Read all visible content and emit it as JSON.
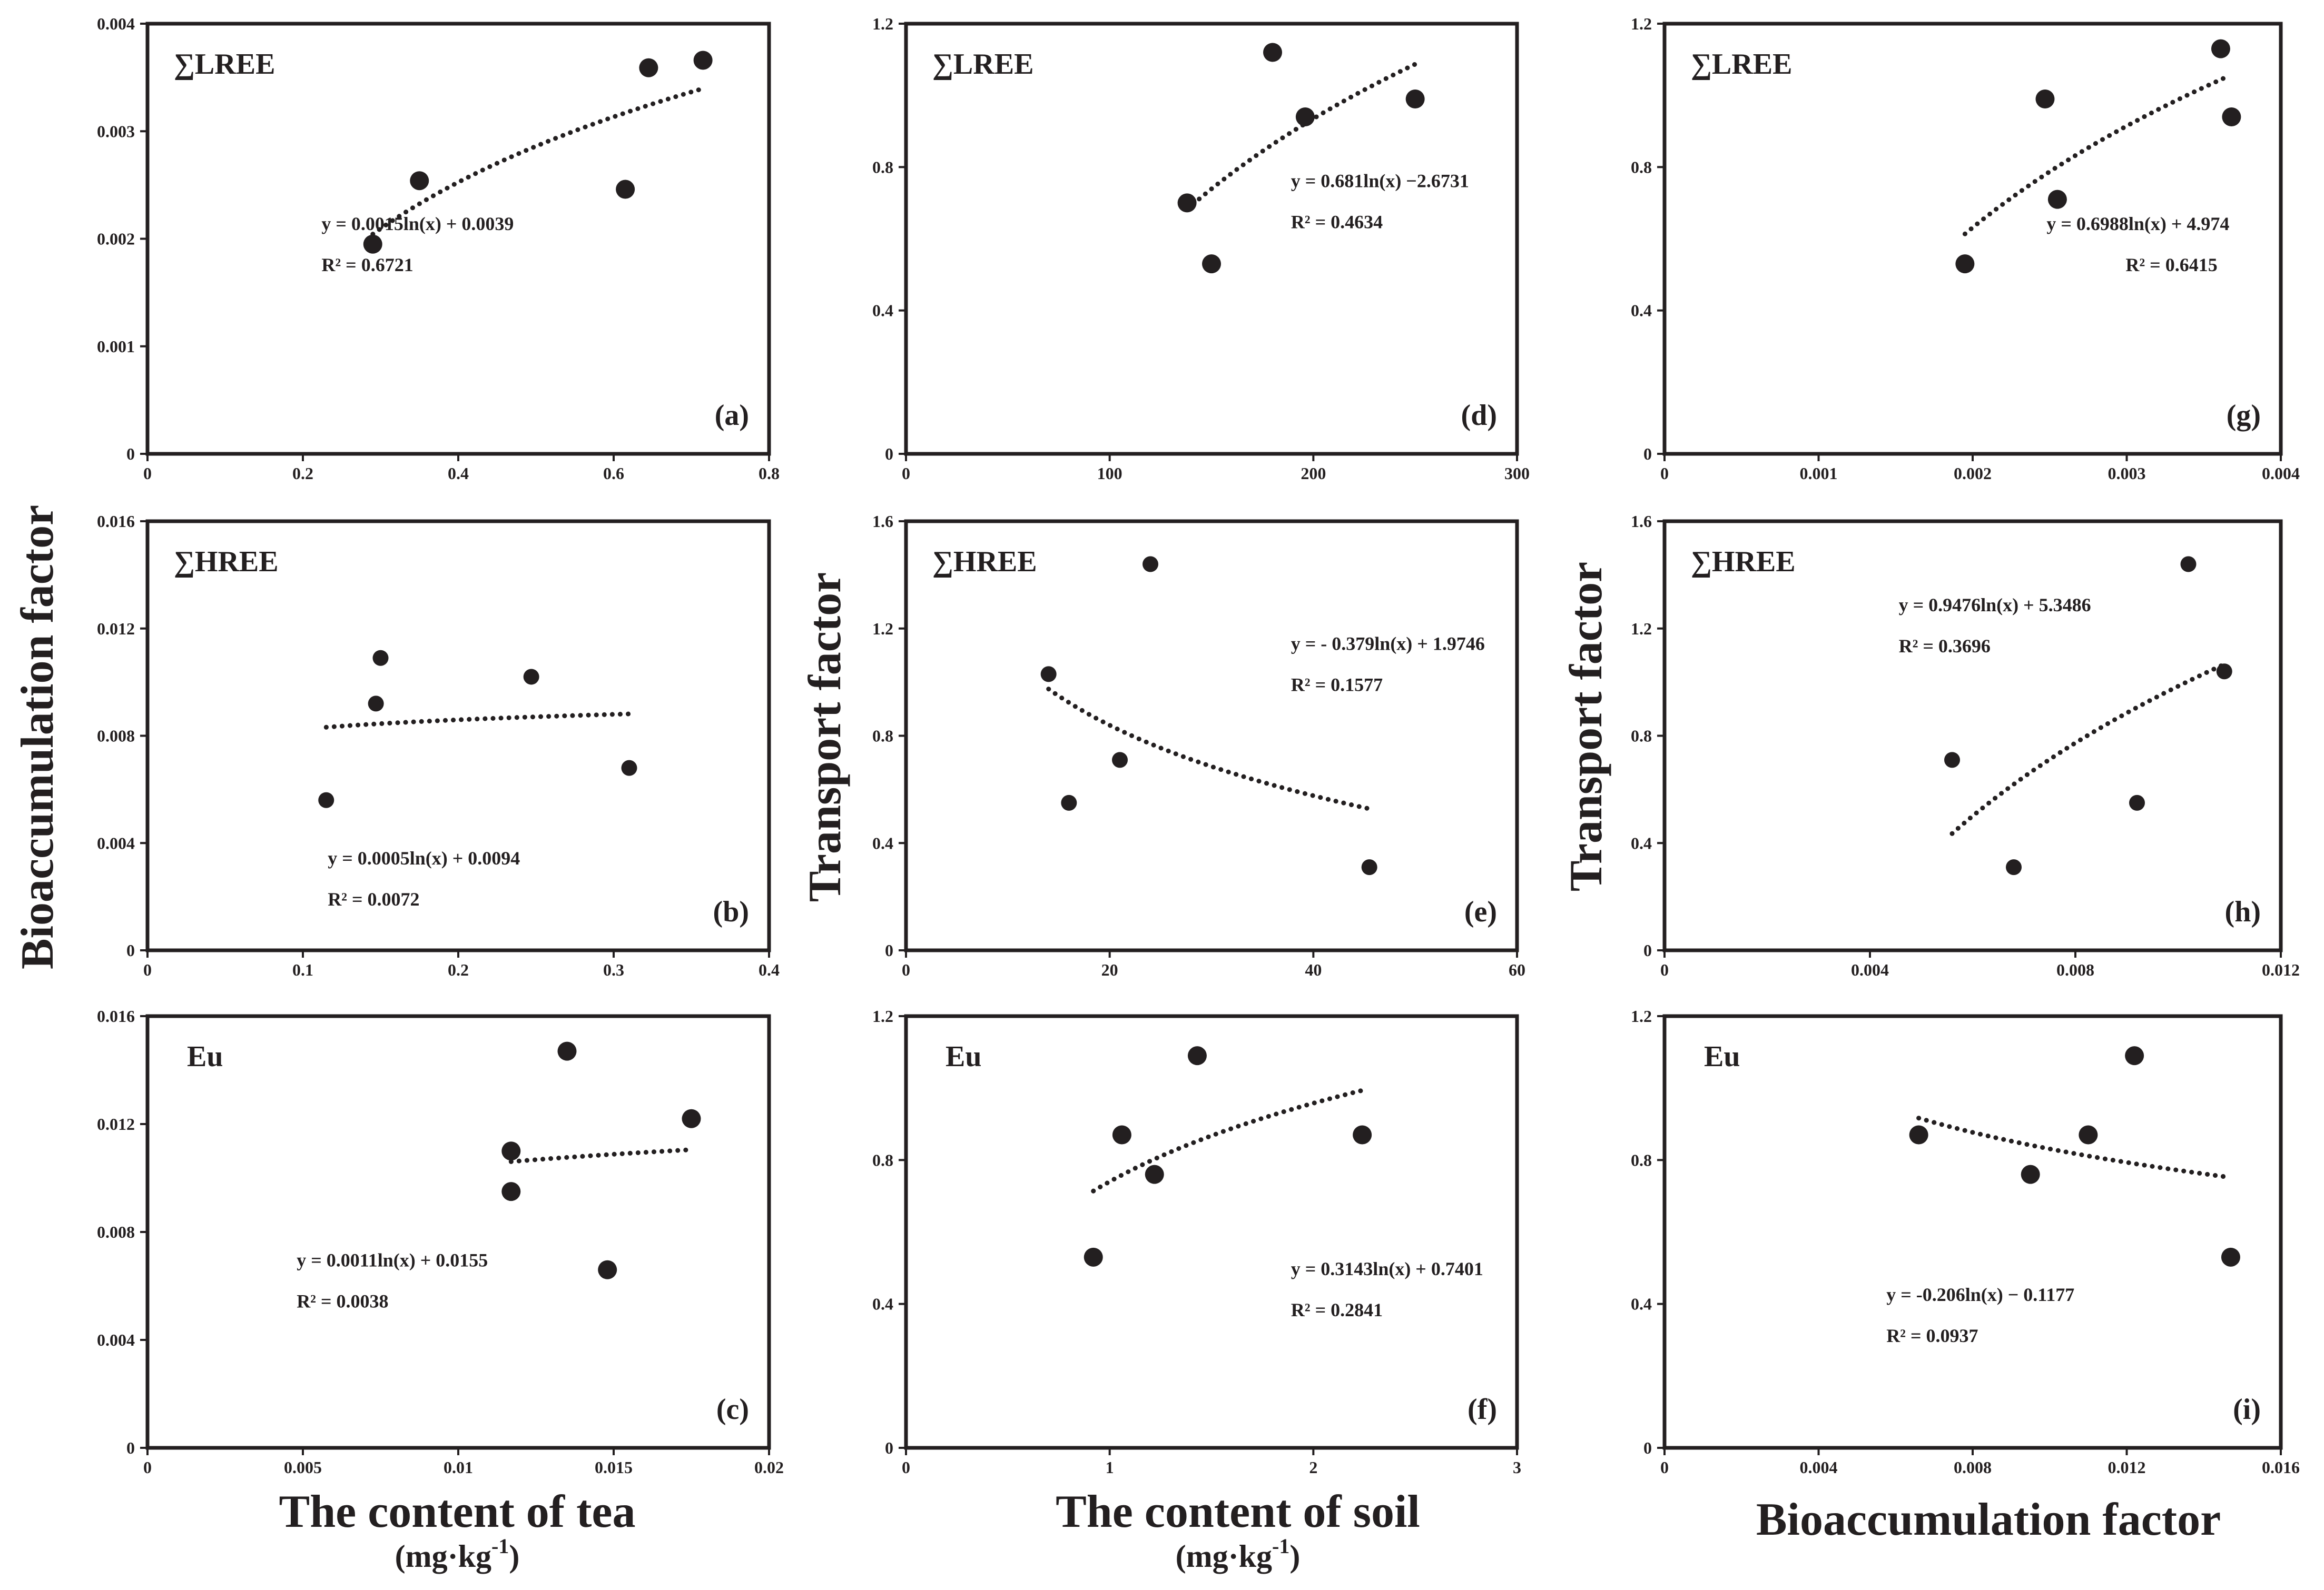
{
  "figure": {
    "col_xlabels": [
      {
        "main": "The content of tea",
        "unit": "(mg·kg",
        "sup": "-1",
        "close": ")"
      },
      {
        "main": "The content of soil",
        "unit": "(mg·kg",
        "sup": "-1",
        "close": ")"
      },
      {
        "main": "Bioaccumulation  factor",
        "unit": "",
        "sup": "",
        "close": ""
      }
    ],
    "row_ylabels": [
      {
        "text": "Bioaccumulation  factor",
        "rows": [
          0,
          2
        ],
        "col": 0
      },
      {
        "text": "Transport  factor",
        "rows": [
          0,
          2
        ],
        "col": 1
      },
      {
        "text": "Transport  factor",
        "rows": [
          1,
          2
        ],
        "col": 2
      }
    ]
  },
  "chart_data": [
    {
      "id": "a",
      "type": "scatter",
      "row": 0,
      "col": 0,
      "label": "∑LREE",
      "panel": "(a)",
      "xlim": [
        0,
        0.8
      ],
      "xticks": [
        0,
        0.2,
        0.4,
        0.6,
        0.8
      ],
      "xtick_labels": [
        "0",
        "0.2",
        "0.4",
        "0.6",
        "0.8"
      ],
      "ylim": [
        0,
        0.004
      ],
      "yticks": [
        0,
        0.001,
        0.002,
        0.003,
        0.004
      ],
      "ytick_labels": [
        "0",
        "0.001",
        "0.002",
        "0.003",
        "0.004"
      ],
      "points": [
        [
          0.29,
          0.00195
        ],
        [
          0.35,
          0.00254
        ],
        [
          0.615,
          0.00246
        ],
        [
          0.645,
          0.00359
        ],
        [
          0.715,
          0.00366
        ]
      ],
      "fit": {
        "a": 0.0015,
        "b": 0.0039,
        "x0": 0.29,
        "x1": 0.715
      },
      "equation": "y = 0.0015ln(x) + 0.0039",
      "r2": "R² = 0.6721"
    },
    {
      "id": "b",
      "type": "scatter",
      "row": 1,
      "col": 0,
      "label": "∑HREE",
      "panel": "(b)",
      "xlim": [
        0,
        0.4
      ],
      "xticks": [
        0,
        0.1,
        0.2,
        0.3,
        0.4
      ],
      "xtick_labels": [
        "0",
        "0.1",
        "0.2",
        "0.3",
        "0.4"
      ],
      "ylim": [
        0,
        0.016
      ],
      "yticks": [
        0,
        0.004,
        0.008,
        0.012,
        0.016
      ],
      "ytick_labels": [
        "0",
        "0.004",
        "0.008",
        "0.012",
        "0.016"
      ],
      "points": [
        [
          0.115,
          0.0056
        ],
        [
          0.147,
          0.0092
        ],
        [
          0.15,
          0.0109
        ],
        [
          0.247,
          0.0102
        ],
        [
          0.31,
          0.0068
        ]
      ],
      "fit": {
        "a": 0.0005,
        "b": 0.0094,
        "x0": 0.115,
        "x1": 0.31
      },
      "equation": "y = 0.0005ln(x) + 0.0094",
      "r2": "R² = 0.0072"
    },
    {
      "id": "c",
      "type": "scatter",
      "row": 2,
      "col": 0,
      "label": "Eu",
      "panel": "(c)",
      "xlim": [
        0,
        0.02
      ],
      "xticks": [
        0,
        0.005,
        0.01,
        0.015,
        0.02
      ],
      "xtick_labels": [
        "0",
        "0.005",
        "0.01",
        "0.015",
        "0.02"
      ],
      "ylim": [
        0,
        0.016
      ],
      "yticks": [
        0,
        0.004,
        0.008,
        0.012,
        0.016
      ],
      "ytick_labels": [
        "0",
        "0.004",
        "0.008",
        "0.012",
        "0.016"
      ],
      "points": [
        [
          0.0117,
          0.011
        ],
        [
          0.0117,
          0.0095
        ],
        [
          0.0135,
          0.0147
        ],
        [
          0.0148,
          0.0066
        ],
        [
          0.0175,
          0.0122
        ]
      ],
      "fit": {
        "a": 0.0011,
        "b": 0.0155,
        "x0": 0.0117,
        "x1": 0.0175
      },
      "equation": "y = 0.0011ln(x) + 0.0155",
      "r2": "R² = 0.0038"
    },
    {
      "id": "d",
      "type": "scatter",
      "row": 0,
      "col": 1,
      "label": "∑LREE",
      "panel": "(d)",
      "xlim": [
        0,
        300
      ],
      "xticks": [
        0,
        100,
        200,
        300
      ],
      "xtick_labels": [
        "0",
        "100",
        "200",
        "300"
      ],
      "ylim": [
        0,
        1.2
      ],
      "yticks": [
        0,
        0.4,
        0.8,
        1.2
      ],
      "ytick_labels": [
        "0",
        "0.4",
        "0.8",
        "1.2"
      ],
      "points": [
        [
          138,
          0.7
        ],
        [
          150,
          0.53
        ],
        [
          180,
          1.12
        ],
        [
          196,
          0.94
        ],
        [
          250,
          0.99
        ]
      ],
      "fit": {
        "a": 0.681,
        "b": -2.6731,
        "x0": 138,
        "x1": 250
      },
      "equation": "y = 0.681ln(x) −2.6731",
      "r2": "R² = 0.4634"
    },
    {
      "id": "e",
      "type": "scatter",
      "row": 1,
      "col": 1,
      "label": "∑HREE",
      "panel": "(e)",
      "xlim": [
        0,
        60
      ],
      "xticks": [
        0,
        20,
        40,
        60
      ],
      "xtick_labels": [
        "0",
        "20",
        "40",
        "60"
      ],
      "ylim": [
        0,
        1.6
      ],
      "yticks": [
        0,
        0.4,
        0.8,
        1.2,
        1.6
      ],
      "ytick_labels": [
        "0",
        "0.4",
        "0.8",
        "1.2",
        "1.6"
      ],
      "points": [
        [
          14,
          1.03
        ],
        [
          16,
          0.55
        ],
        [
          21,
          0.71
        ],
        [
          24,
          1.44
        ],
        [
          45.5,
          0.31
        ]
      ],
      "fit": {
        "a": -0.379,
        "b": 1.9746,
        "x0": 14,
        "x1": 45.5
      },
      "equation": "y = - 0.379ln(x) + 1.9746",
      "r2": "R² = 0.1577"
    },
    {
      "id": "f",
      "type": "scatter",
      "row": 2,
      "col": 1,
      "label": "Eu",
      "panel": "(f)",
      "xlim": [
        0,
        3
      ],
      "xticks": [
        0,
        1,
        2,
        3
      ],
      "xtick_labels": [
        "0",
        "1",
        "2",
        "3"
      ],
      "ylim": [
        0,
        1.2
      ],
      "yticks": [
        0,
        0.4,
        0.8,
        1.2
      ],
      "ytick_labels": [
        "0",
        "0.4",
        "0.8",
        "1.2"
      ],
      "points": [
        [
          0.92,
          0.53
        ],
        [
          1.06,
          0.87
        ],
        [
          1.22,
          0.76
        ],
        [
          1.43,
          1.09
        ],
        [
          2.24,
          0.87
        ]
      ],
      "fit": {
        "a": 0.3143,
        "b": 0.7401,
        "x0": 0.92,
        "x1": 2.24
      },
      "equation": "y = 0.3143ln(x) + 0.7401",
      "r2": "R² = 0.2841"
    },
    {
      "id": "g",
      "type": "scatter",
      "row": 0,
      "col": 2,
      "label": "∑LREE",
      "panel": "(g)",
      "xlim": [
        0,
        0.004
      ],
      "xticks": [
        0,
        0.001,
        0.002,
        0.003,
        0.004
      ],
      "xtick_labels": [
        "0",
        "0.001",
        "0.002",
        "0.003",
        "0.004"
      ],
      "ylim": [
        0,
        1.2
      ],
      "yticks": [
        0,
        0.4,
        0.8,
        1.2
      ],
      "ytick_labels": [
        "0",
        "0.4",
        "0.8",
        "1.2"
      ],
      "points": [
        [
          0.00195,
          0.53
        ],
        [
          0.00247,
          0.99
        ],
        [
          0.00255,
          0.71
        ],
        [
          0.00361,
          1.13
        ],
        [
          0.00368,
          0.94
        ]
      ],
      "fit": {
        "a": 0.6988,
        "b": 4.974,
        "x0": 0.00195,
        "x1": 0.00365
      },
      "equation": "y = 0.6988ln(x) + 4.974",
      "r2": "R² = 0.6415"
    },
    {
      "id": "h",
      "type": "scatter",
      "row": 1,
      "col": 2,
      "label": "∑HREE",
      "panel": "(h)",
      "xlim": [
        0,
        0.012
      ],
      "xticks": [
        0,
        0.004,
        0.008,
        0.012
      ],
      "xtick_labels": [
        "0",
        "0.004",
        "0.008",
        "0.012"
      ],
      "ylim": [
        0,
        1.6
      ],
      "yticks": [
        0,
        0.4,
        0.8,
        1.2,
        1.6
      ],
      "ytick_labels": [
        "0",
        "0.4",
        "0.8",
        "1.2",
        "1.6"
      ],
      "points": [
        [
          0.0056,
          0.71
        ],
        [
          0.0068,
          0.31
        ],
        [
          0.0092,
          0.55
        ],
        [
          0.0102,
          1.44
        ],
        [
          0.0109,
          1.04
        ]
      ],
      "fit": {
        "a": 0.9476,
        "b": 5.3486,
        "x0": 0.0056,
        "x1": 0.0109
      },
      "equation": "y = 0.9476ln(x) + 5.3486",
      "r2": "R² = 0.3696"
    },
    {
      "id": "i",
      "type": "scatter",
      "row": 2,
      "col": 2,
      "label": "Eu",
      "panel": "(i)",
      "xlim": [
        0,
        0.016
      ],
      "xticks": [
        0,
        0.004,
        0.008,
        0.012,
        0.016
      ],
      "xtick_labels": [
        "0",
        "0.004",
        "0.008",
        "0.012",
        "0.016"
      ],
      "ylim": [
        0,
        1.2
      ],
      "yticks": [
        0,
        0.4,
        0.8,
        1.2
      ],
      "ytick_labels": [
        "0",
        "0.4",
        "0.8",
        "1.2"
      ],
      "points": [
        [
          0.0066,
          0.87
        ],
        [
          0.0095,
          0.76
        ],
        [
          0.011,
          0.87
        ],
        [
          0.0122,
          1.09
        ],
        [
          0.0147,
          0.53
        ]
      ],
      "fit": {
        "a": -0.206,
        "b": -0.1177,
        "x0": 0.0066,
        "x1": 0.0147
      },
      "equation": "y = -0.206ln(x) − 0.1177",
      "r2": "R² = 0.0937"
    }
  ]
}
